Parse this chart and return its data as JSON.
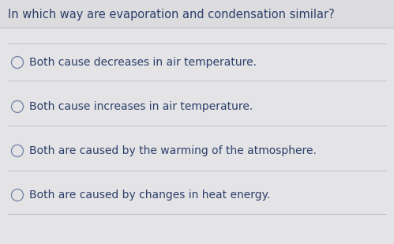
{
  "question": "In which way are evaporation and condensation similar?",
  "options": [
    "Both cause decreases in air temperature.",
    "Both cause increases in air temperature.",
    "Both are caused by the warming of the atmosphere.",
    "Both are caused by changes in heat energy."
  ],
  "background_color": "#e4e4e6",
  "text_color": "#2d3f6b",
  "question_fontsize": 10.5,
  "option_fontsize": 10.0,
  "divider_color": "#c0c0c4",
  "circle_color": "#7a8aaa",
  "question_bg": "#dcdcde"
}
